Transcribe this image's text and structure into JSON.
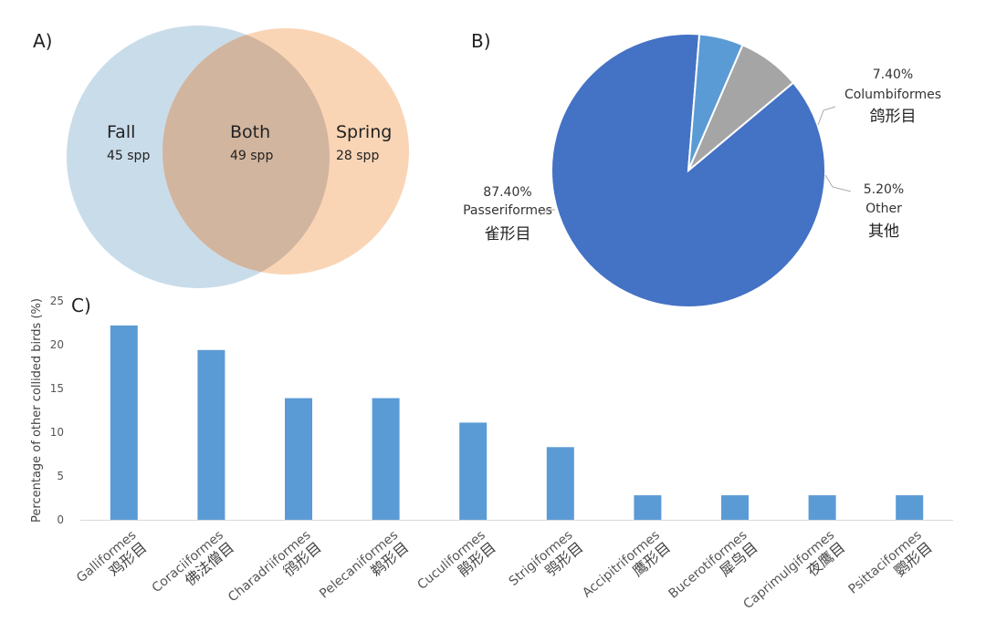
{
  "panels": {
    "a": "A)",
    "b": "B)",
    "c": "C)"
  },
  "venn": {
    "left": {
      "name": "Fall",
      "count": "45 spp",
      "color": "#c9dcea"
    },
    "center": {
      "name": "Both",
      "count": "49 spp",
      "color": "#d2b59e"
    },
    "right": {
      "name": "Spring",
      "count": "28 spp",
      "color": "#f9d5b6"
    }
  },
  "chart_data": [
    {
      "type": "pie",
      "slices": [
        {
          "label": "Passeriformes",
          "label_cn": "雀形目",
          "pct_text": "87.40%",
          "value": 87.4,
          "color": "#4472c4"
        },
        {
          "label": "Columbiformes",
          "label_cn": "鸽形目",
          "pct_text": "7.40%",
          "value": 7.4,
          "color": "#a5a5a5"
        },
        {
          "label": "Other",
          "label_cn": "其他",
          "pct_text": "5.20%",
          "value": 5.2,
          "color": "#5b9bd5"
        }
      ]
    },
    {
      "type": "bar",
      "ylabel": "Percentage of other collided birds (%)",
      "ylim": [
        0,
        25
      ],
      "yticks": [
        "0",
        "5",
        "10",
        "15",
        "20",
        "25"
      ],
      "categories": [
        "Galliformes",
        "Coraciiformes",
        "Charadriiformes",
        "Pelecaniformes",
        "Cuculiformes",
        "Strigiformes",
        "Accipitriformes",
        "Bucerotiformes",
        "Caprimulgiformes",
        "Psittaciformes"
      ],
      "categories_cn": [
        "鸡形目",
        "佛法僧目",
        "鸻形目",
        "鹈形目",
        "鹃形目",
        "鸮形目",
        "鹰形目",
        "犀鸟目",
        "夜鹰目",
        "鹦形目"
      ],
      "values": [
        22.2,
        19.4,
        13.9,
        13.9,
        11.1,
        8.3,
        2.8,
        2.8,
        2.8,
        2.8
      ],
      "bar_color": "#5b9bd5"
    }
  ]
}
